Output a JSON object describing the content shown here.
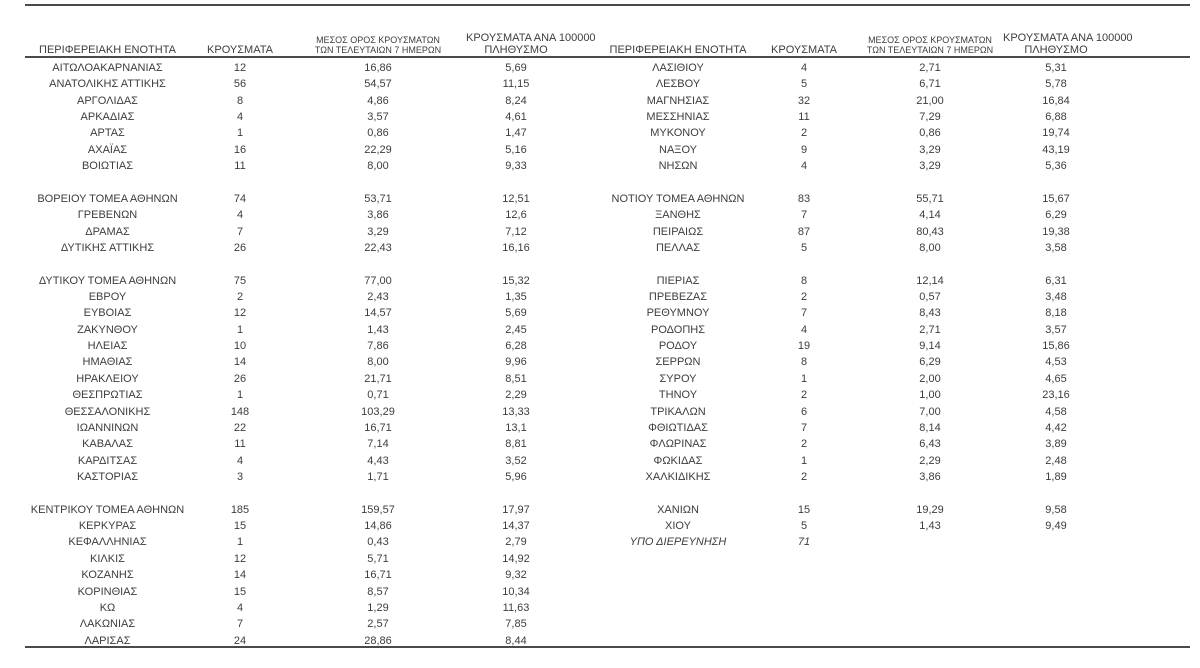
{
  "page": {
    "background": "#ffffff",
    "text_color": "#3d3d3d",
    "rule_color": "#4a4a4a"
  },
  "headers": {
    "region": "ΠΕΡΙΦΕΡΕΙΑΚΗ ΕΝΟΤΗΤΑ",
    "cases": "ΚΡΟΥΣΜΑΤΑ",
    "avg7_line1": "ΜΕΣΟΣ ΟΡΟΣ ΚΡΟΥΣΜΑΤΩΝ",
    "avg7_line2": "ΤΩΝ ΤΕΛΕΥΤΑΙΩΝ 7 ΗΜΕΡΩΝ",
    "per100k_line1": "ΚΡΟΥΣΜΑΤΑ ΑΝΑ 100000",
    "per100k_line2": "ΠΛΗΘΥΣΜΟ"
  },
  "tables": {
    "left": {
      "groups": [
        [
          {
            "region": "ΑΙΤΩΛΟΑΚΑΡΝΑΝΙΑΣ",
            "cases": "12",
            "avg7": "16,86",
            "per100k": "5,69"
          },
          {
            "region": "ΑΝΑΤΟΛΙΚΗΣ ΑΤΤΙΚΗΣ",
            "cases": "56",
            "avg7": "54,57",
            "per100k": "11,15"
          },
          {
            "region": "ΑΡΓΟΛΙΔΑΣ",
            "cases": "8",
            "avg7": "4,86",
            "per100k": "8,24"
          },
          {
            "region": "ΑΡΚΑΔΙΑΣ",
            "cases": "4",
            "avg7": "3,57",
            "per100k": "4,61"
          },
          {
            "region": "ΑΡΤΑΣ",
            "cases": "1",
            "avg7": "0,86",
            "per100k": "1,47"
          },
          {
            "region": "ΑΧΑΪΑΣ",
            "cases": "16",
            "avg7": "22,29",
            "per100k": "5,16"
          },
          {
            "region": "ΒΟΙΩΤΙΑΣ",
            "cases": "11",
            "avg7": "8,00",
            "per100k": "9,33"
          }
        ],
        [
          {
            "region": "ΒΟΡΕΙΟΥ ΤΟΜΕΑ ΑΘΗΝΩΝ",
            "cases": "74",
            "avg7": "53,71",
            "per100k": "12,51"
          },
          {
            "region": "ΓΡΕΒΕΝΩΝ",
            "cases": "4",
            "avg7": "3,86",
            "per100k": "12,6"
          },
          {
            "region": "ΔΡΑΜΑΣ",
            "cases": "7",
            "avg7": "3,29",
            "per100k": "7,12"
          },
          {
            "region": "ΔΥΤΙΚΗΣ ΑΤΤΙΚΗΣ",
            "cases": "26",
            "avg7": "22,43",
            "per100k": "16,16"
          }
        ],
        [
          {
            "region": "ΔΥΤΙΚΟΥ ΤΟΜΕΑ ΑΘΗΝΩΝ",
            "cases": "75",
            "avg7": "77,00",
            "per100k": "15,32"
          },
          {
            "region": "ΕΒΡΟΥ",
            "cases": "2",
            "avg7": "2,43",
            "per100k": "1,35"
          },
          {
            "region": "ΕΥΒΟΙΑΣ",
            "cases": "12",
            "avg7": "14,57",
            "per100k": "5,69"
          },
          {
            "region": "ΖΑΚΥΝΘΟΥ",
            "cases": "1",
            "avg7": "1,43",
            "per100k": "2,45"
          },
          {
            "region": "ΗΛΕΙΑΣ",
            "cases": "10",
            "avg7": "7,86",
            "per100k": "6,28"
          },
          {
            "region": "ΗΜΑΘΙΑΣ",
            "cases": "14",
            "avg7": "8,00",
            "per100k": "9,96"
          },
          {
            "region": "ΗΡΑΚΛΕΙΟΥ",
            "cases": "26",
            "avg7": "21,71",
            "per100k": "8,51"
          },
          {
            "region": "ΘΕΣΠΡΩΤΙΑΣ",
            "cases": "1",
            "avg7": "0,71",
            "per100k": "2,29"
          },
          {
            "region": "ΘΕΣΣΑΛΟΝΙΚΗΣ",
            "cases": "148",
            "avg7": "103,29",
            "per100k": "13,33"
          },
          {
            "region": "ΙΩΑΝΝΙΝΩΝ",
            "cases": "22",
            "avg7": "16,71",
            "per100k": "13,1"
          },
          {
            "region": "ΚΑΒΑΛΑΣ",
            "cases": "11",
            "avg7": "7,14",
            "per100k": "8,81"
          },
          {
            "region": "ΚΑΡΔΙΤΣΑΣ",
            "cases": "4",
            "avg7": "4,43",
            "per100k": "3,52"
          },
          {
            "region": "ΚΑΣΤΟΡΙΑΣ",
            "cases": "3",
            "avg7": "1,71",
            "per100k": "5,96"
          }
        ],
        [
          {
            "region": "ΚΕΝΤΡΙΚΟΥ ΤΟΜΕΑ ΑΘΗΝΩΝ",
            "cases": "185",
            "avg7": "159,57",
            "per100k": "17,97"
          },
          {
            "region": "ΚΕΡΚΥΡΑΣ",
            "cases": "15",
            "avg7": "14,86",
            "per100k": "14,37"
          },
          {
            "region": "ΚΕΦΑΛΛΗΝΙΑΣ",
            "cases": "1",
            "avg7": "0,43",
            "per100k": "2,79"
          },
          {
            "region": "ΚΙΛΚΙΣ",
            "cases": "12",
            "avg7": "5,71",
            "per100k": "14,92"
          },
          {
            "region": "ΚΟΖΑΝΗΣ",
            "cases": "14",
            "avg7": "16,71",
            "per100k": "9,32"
          },
          {
            "region": "ΚΟΡΙΝΘΙΑΣ",
            "cases": "15",
            "avg7": "8,57",
            "per100k": "10,34"
          },
          {
            "region": "ΚΩ",
            "cases": "4",
            "avg7": "1,29",
            "per100k": "11,63"
          },
          {
            "region": "ΛΑΚΩΝΙΑΣ",
            "cases": "7",
            "avg7": "2,57",
            "per100k": "7,85"
          },
          {
            "region": "ΛΑΡΙΣΑΣ",
            "cases": "24",
            "avg7": "28,86",
            "per100k": "8,44"
          }
        ]
      ]
    },
    "right": {
      "groups": [
        [
          {
            "region": "ΛΑΣΙΘΙΟΥ",
            "cases": "4",
            "avg7": "2,71",
            "per100k": "5,31"
          },
          {
            "region": "ΛΕΣΒΟΥ",
            "cases": "5",
            "avg7": "6,71",
            "per100k": "5,78"
          },
          {
            "region": "ΜΑΓΝΗΣΙΑΣ",
            "cases": "32",
            "avg7": "21,00",
            "per100k": "16,84"
          },
          {
            "region": "ΜΕΣΣΗΝΙΑΣ",
            "cases": "11",
            "avg7": "7,29",
            "per100k": "6,88"
          },
          {
            "region": "ΜΥΚΟΝΟΥ",
            "cases": "2",
            "avg7": "0,86",
            "per100k": "19,74"
          },
          {
            "region": "ΝΑΞΟΥ",
            "cases": "9",
            "avg7": "3,29",
            "per100k": "43,19"
          },
          {
            "region": "ΝΗΣΩΝ",
            "cases": "4",
            "avg7": "3,29",
            "per100k": "5,36"
          }
        ],
        [
          {
            "region": "ΝΟΤΙΟΥ ΤΟΜΕΑ ΑΘΗΝΩΝ",
            "cases": "83",
            "avg7": "55,71",
            "per100k": "15,67"
          },
          {
            "region": "ΞΑΝΘΗΣ",
            "cases": "7",
            "avg7": "4,14",
            "per100k": "6,29"
          },
          {
            "region": "ΠΕΙΡΑΙΩΣ",
            "cases": "87",
            "avg7": "80,43",
            "per100k": "19,38"
          },
          {
            "region": "ΠΕΛΛΑΣ",
            "cases": "5",
            "avg7": "8,00",
            "per100k": "3,58"
          }
        ],
        [
          {
            "region": "ΠΙΕΡΙΑΣ",
            "cases": "8",
            "avg7": "12,14",
            "per100k": "6,31"
          },
          {
            "region": "ΠΡΕΒΕΖΑΣ",
            "cases": "2",
            "avg7": "0,57",
            "per100k": "3,48"
          },
          {
            "region": "ΡΕΘΥΜΝΟΥ",
            "cases": "7",
            "avg7": "8,43",
            "per100k": "8,18"
          },
          {
            "region": "ΡΟΔΟΠΗΣ",
            "cases": "4",
            "avg7": "2,71",
            "per100k": "3,57"
          },
          {
            "region": "ΡΟΔΟΥ",
            "cases": "19",
            "avg7": "9,14",
            "per100k": "15,86"
          },
          {
            "region": "ΣΕΡΡΩΝ",
            "cases": "8",
            "avg7": "6,29",
            "per100k": "4,53"
          },
          {
            "region": "ΣΥΡΟΥ",
            "cases": "1",
            "avg7": "2,00",
            "per100k": "4,65"
          },
          {
            "region": "ΤΗΝΟΥ",
            "cases": "2",
            "avg7": "1,00",
            "per100k": "23,16"
          },
          {
            "region": "ΤΡΙΚΑΛΩΝ",
            "cases": "6",
            "avg7": "7,00",
            "per100k": "4,58"
          },
          {
            "region": "ΦΘΙΩΤΙΔΑΣ",
            "cases": "7",
            "avg7": "8,14",
            "per100k": "4,42"
          },
          {
            "region": "ΦΛΩΡΙΝΑΣ",
            "cases": "2",
            "avg7": "6,43",
            "per100k": "3,89"
          },
          {
            "region": "ΦΩΚΙΔΑΣ",
            "cases": "1",
            "avg7": "2,29",
            "per100k": "2,48"
          },
          {
            "region": "ΧΑΛΚΙΔΙΚΗΣ",
            "cases": "2",
            "avg7": "3,86",
            "per100k": "1,89"
          }
        ],
        [
          {
            "region": "ΧΑΝΙΩΝ",
            "cases": "15",
            "avg7": "19,29",
            "per100k": "9,58"
          },
          {
            "region": "ΧΙΟΥ",
            "cases": "5",
            "avg7": "1,43",
            "per100k": "9,49"
          },
          {
            "region": "ΥΠΟ ΔΙΕΡΕΥΝΗΣΗ",
            "cases": "71",
            "avg7": "",
            "per100k": "",
            "italic": true
          }
        ]
      ]
    }
  }
}
